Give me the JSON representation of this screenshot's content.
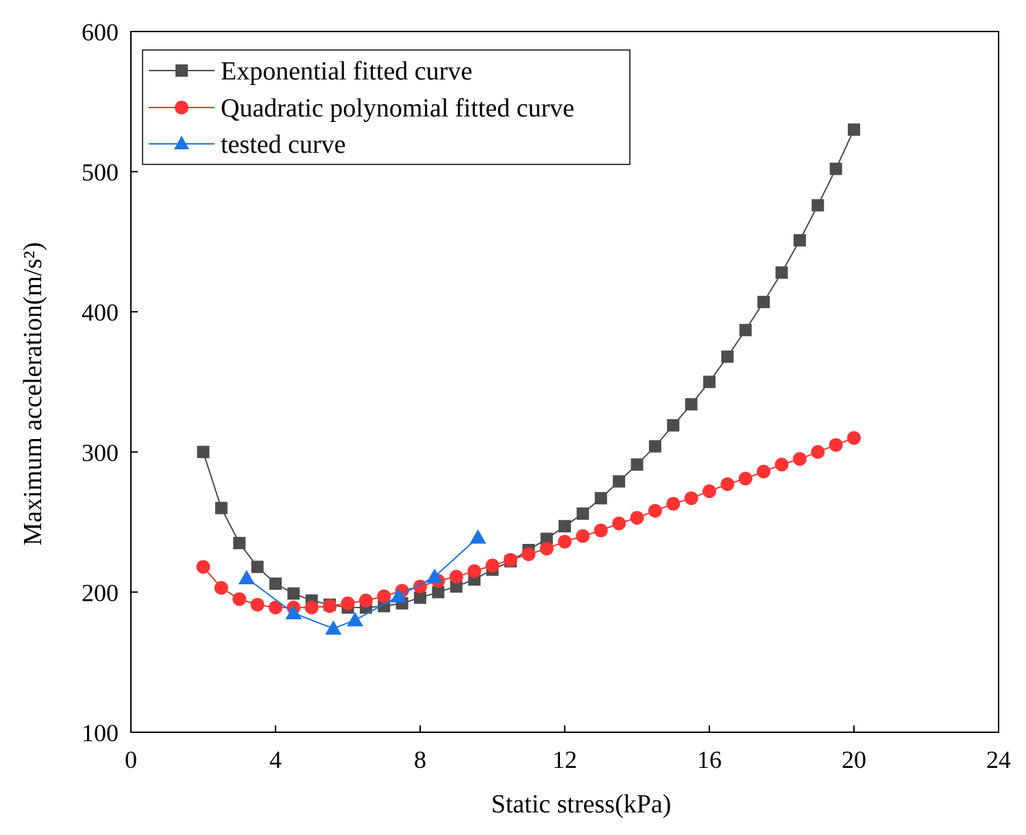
{
  "chart_data": {
    "type": "line",
    "title": "",
    "xlabel": "Static stress(kPa)",
    "ylabel": "Maximum acceleration(m/s²)",
    "xlim": [
      0,
      24
    ],
    "ylim": [
      100,
      600
    ],
    "xticks": [
      0,
      4,
      8,
      12,
      16,
      20,
      24
    ],
    "xtick_labels": [
      "0",
      "4",
      "8",
      "12",
      "16",
      "20",
      "24"
    ],
    "yticks": [
      100,
      200,
      300,
      400,
      500,
      600
    ],
    "ytick_labels": [
      "100",
      "200",
      "300",
      "400",
      "500",
      "600"
    ],
    "grid": false,
    "legend_position": "top-left",
    "series": [
      {
        "name": "Exponential fitted curve",
        "color": "#4d4d4d",
        "marker": "square",
        "x": [
          2,
          2.5,
          3,
          3.5,
          4,
          4.5,
          5,
          5.5,
          6,
          6.5,
          7,
          7.5,
          8,
          8.5,
          9,
          9.5,
          10,
          10.5,
          11,
          11.5,
          12,
          12.5,
          13,
          13.5,
          14,
          14.5,
          15,
          15.5,
          16,
          16.5,
          17,
          17.5,
          18,
          18.5,
          19,
          19.5,
          20
        ],
        "y": [
          300,
          260,
          235,
          218,
          206,
          199,
          194,
          191,
          189,
          189,
          190,
          192,
          196,
          200,
          204,
          209,
          216,
          222,
          230,
          238,
          247,
          256,
          267,
          279,
          291,
          304,
          319,
          334,
          350,
          368,
          387,
          407,
          428,
          451,
          476,
          502,
          530
        ]
      },
      {
        "name": "Quadratic polynomial fitted curve",
        "color": "#ff3333",
        "marker": "circle",
        "x": [
          2,
          2.5,
          3,
          3.5,
          4,
          4.5,
          5,
          5.5,
          6,
          6.5,
          7,
          7.5,
          8,
          8.5,
          9,
          9.5,
          10,
          10.5,
          11,
          11.5,
          12,
          12.5,
          13,
          13.5,
          14,
          14.5,
          15,
          15.5,
          16,
          16.5,
          17,
          17.5,
          18,
          18.5,
          19,
          19.5,
          20
        ],
        "y": [
          218,
          203,
          195,
          191,
          189,
          189,
          189,
          190,
          192,
          194,
          197,
          201,
          204,
          208,
          211,
          215,
          219,
          223,
          227,
          231,
          236,
          240,
          244,
          249,
          253,
          258,
          263,
          267,
          272,
          277,
          281,
          286,
          291,
          295,
          300,
          305,
          310
        ]
      },
      {
        "name": "tested curve",
        "color": "#1a75e6",
        "marker": "triangle",
        "x": [
          3.2,
          4.5,
          5.6,
          6.2,
          7.4,
          8.4,
          9.6
        ],
        "y": [
          210,
          185,
          174,
          180,
          197,
          211,
          239
        ]
      }
    ]
  }
}
